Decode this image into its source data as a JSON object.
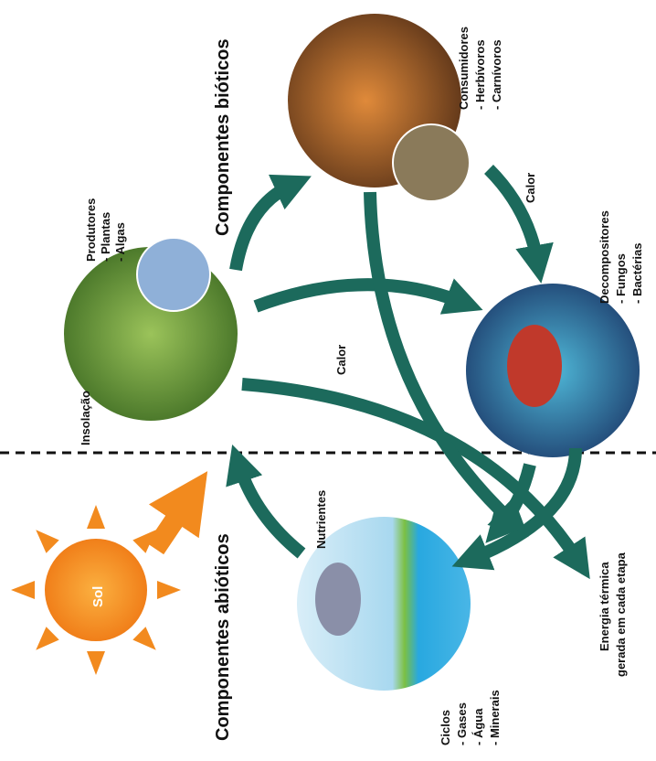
{
  "sections": {
    "biotic": "Componentes bióticos",
    "abiotic": "Componentes abióticos"
  },
  "nodes": [
    {
      "label": "Produtores",
      "items": [
        "- Plantas",
        "- Algas"
      ]
    },
    {
      "label": "Consumidores",
      "items": [
        "- Herbívoros",
        "- Carnívoros"
      ]
    },
    {
      "label": "Decompositores",
      "items": [
        "- Fungos",
        "- Bactérias"
      ]
    },
    {
      "label": "Ciclos",
      "items": [
        "- Gases",
        "- Água",
        "- Minerais"
      ]
    }
  ],
  "sun": "Sol",
  "flows": [
    "Insolação",
    "Nutrientes",
    "Calor",
    "Calor"
  ],
  "energy": [
    "Energia térmica",
    "gerada em cada etapa"
  ]
}
